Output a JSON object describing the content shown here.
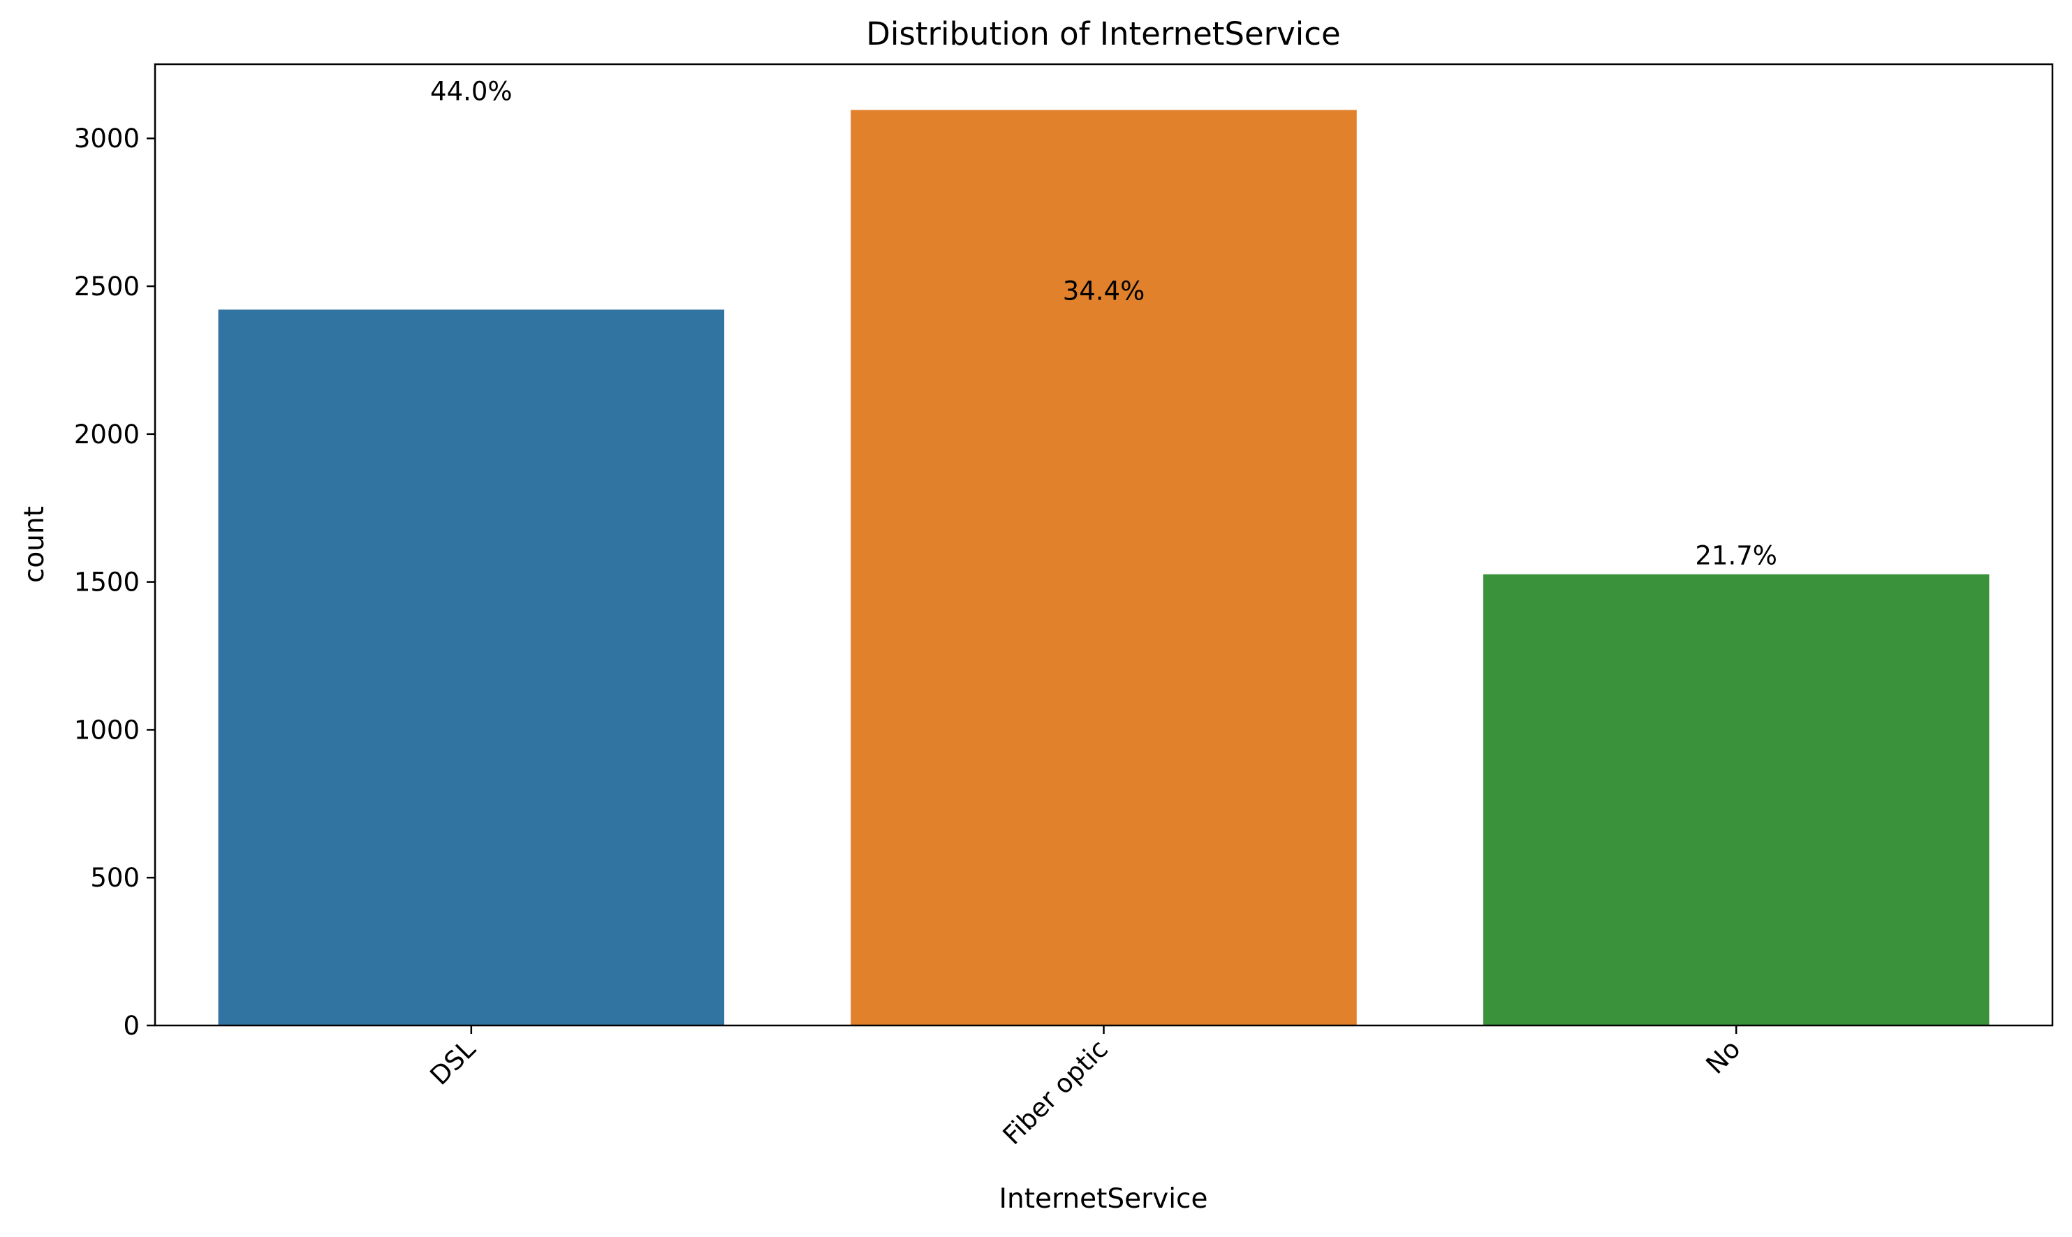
{
  "chart_data": {
    "type": "bar",
    "title": "Distribution of InternetService",
    "xlabel": "InternetService",
    "ylabel": "count",
    "categories": [
      "DSL",
      "Fiber optic",
      "No"
    ],
    "values": [
      2421,
      3096,
      1526
    ],
    "percent_labels": [
      "44.0%",
      "34.4%",
      "21.7%"
    ],
    "percent_label_anchor_values": [
      3096,
      2421,
      1526
    ],
    "colors": [
      "#3274a1",
      "#e1812c",
      "#3a923a"
    ],
    "yticks": [
      0,
      500,
      1000,
      1500,
      2000,
      2500,
      3000
    ],
    "ylim": [
      0,
      3250.8
    ],
    "grid": false,
    "legend": "none"
  }
}
